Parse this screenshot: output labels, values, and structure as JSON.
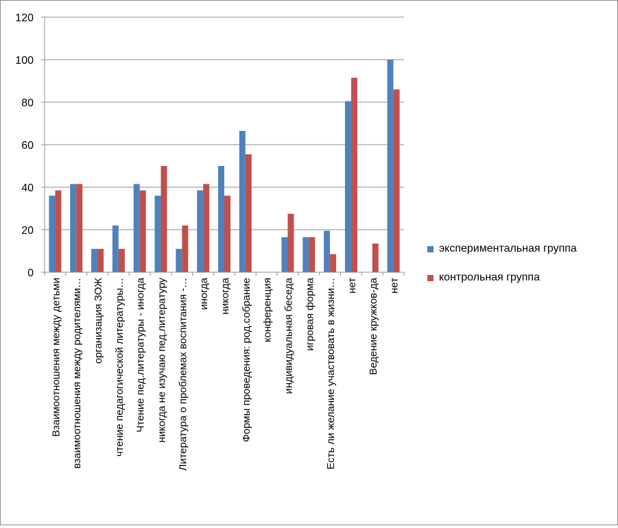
{
  "chart_data": {
    "type": "bar",
    "title": "",
    "xlabel": "",
    "ylabel": "",
    "ylim": [
      0,
      120
    ],
    "yticks": [
      0,
      20,
      40,
      60,
      80,
      100,
      120
    ],
    "grid": true,
    "legend_position": "right",
    "categories": [
      "Взаимоотношения между детьми",
      "взаимоотношения между родителями…",
      "организация ЗОЖ",
      "чтение педагогической литературы…",
      "Чтение пед.литературы - иногда",
      "никогда не изучаю пед.литературу",
      "Литература о проблемах воспитания -…",
      "иногда",
      "никогда",
      "Формы проведения: род.собрание",
      "конференция",
      "индивидуальная беседа",
      "игровая форма",
      "Есть ли желание участвовать в жизни…",
      "нет",
      "Ведение кружков-да",
      "нет"
    ],
    "series": [
      {
        "name": "экспериментальная группа",
        "color": "#4f81bd",
        "values": [
          36,
          41.5,
          11,
          22,
          41.5,
          36,
          11,
          38.5,
          50,
          66.5,
          0,
          16.5,
          16.5,
          19.5,
          80.5,
          0,
          100
        ]
      },
      {
        "name": "контрольная группа",
        "color": "#c0504d",
        "values": [
          38.5,
          41.5,
          11,
          11,
          38.5,
          50,
          22,
          41.5,
          36,
          55.5,
          0,
          27.5,
          16.5,
          8.5,
          91.5,
          13.5,
          86
        ]
      }
    ]
  }
}
